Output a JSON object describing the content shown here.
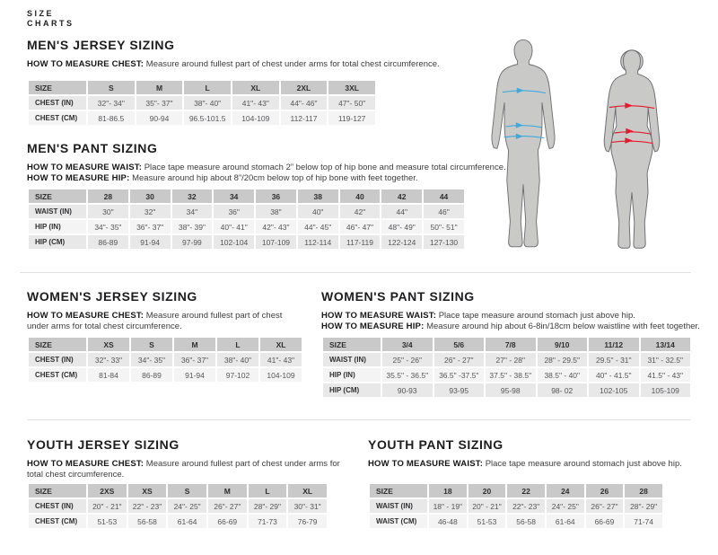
{
  "brand": {
    "line1": "SIZE",
    "line2": "CHARTS"
  },
  "colors": {
    "male_arrow": "#3fa9dc",
    "female_arrow": "#e11b2e",
    "table_header_bg": "#c9c9c9",
    "row_dark": "#e8e8e8",
    "row_light": "#f4f4f4",
    "silhouette_fill": "#c9cac8",
    "divider": "#e2e2e2"
  },
  "sections": {
    "mens_jersey": {
      "title": "MEN'S JERSEY SIZING",
      "instructions": [
        {
          "label": "HOW TO MEASURE CHEST:",
          "text": " Measure around fullest part of chest under arms for total chest circumference."
        }
      ],
      "table": {
        "headers": [
          "SIZE",
          "S",
          "M",
          "L",
          "XL",
          "2XL",
          "3XL"
        ],
        "rows": [
          {
            "label": "CHEST (IN)",
            "values": [
              "32\"- 34\"",
              "35\"- 37\"",
              "38\"- 40\"",
              "41\"- 43\"",
              "44\"- 46\"",
              "47\"- 50\""
            ]
          },
          {
            "label": "CHEST (CM)",
            "values": [
              "81-86.5",
              "90-94",
              "96.5-101.5",
              "104-109",
              "112-117",
              "119-127"
            ]
          }
        ]
      }
    },
    "mens_pant": {
      "title": "MEN'S PANT SIZING",
      "instructions": [
        {
          "label": "HOW TO MEASURE WAIST:",
          "text": " Place tape measure around stomach 2” below top of hip bone and measure total circumference."
        },
        {
          "label": "HOW TO MEASURE HIP:",
          "text": " Measure around hip about 8”/20cm below top of hip bone with feet together."
        }
      ],
      "table": {
        "headers": [
          "SIZE",
          "28",
          "30",
          "32",
          "34",
          "36",
          "38",
          "40",
          "42",
          "44"
        ],
        "rows": [
          {
            "label": "WAIST (IN)",
            "values": [
              "30\"",
              "32\"",
              "34\"",
              "36\"",
              "38\"",
              "40\"",
              "42\"",
              "44\"",
              "46\""
            ]
          },
          {
            "label": "HIP (IN)",
            "values": [
              "34\"- 35\"",
              "36\"- 37\"",
              "38\"- 39\"",
              "40\"- 41\"",
              "42\"- 43\"",
              "44\"- 45\"",
              "46\"- 47\"",
              "48\"- 49\"",
              "50\"- 51\""
            ]
          },
          {
            "label": "HIP (CM)",
            "values": [
              "86-89",
              "91-94",
              "97-99",
              "102-104",
              "107-109",
              "112-114",
              "117-119",
              "122-124",
              "127-130"
            ]
          }
        ]
      }
    },
    "womens_jersey": {
      "title": "WOMEN'S JERSEY SIZING",
      "instructions": [
        {
          "label": "HOW TO MEASURE CHEST:",
          "text": " Measure around fullest part of chest under arms for total chest circumference."
        }
      ],
      "table": {
        "headers": [
          "SIZE",
          "XS",
          "S",
          "M",
          "L",
          "XL"
        ],
        "rows": [
          {
            "label": "CHEST (IN)",
            "values": [
              "32\"- 33\"",
              "34\"- 35\"",
              "36\"- 37\"",
              "38\"- 40\"",
              "41\"- 43\""
            ]
          },
          {
            "label": "CHEST (CM)",
            "values": [
              "81-84",
              "86-89",
              "91-94",
              "97-102",
              "104-109"
            ]
          }
        ]
      }
    },
    "womens_pant": {
      "title": "WOMEN'S PANT SIZING",
      "instructions": [
        {
          "label": "HOW TO MEASURE WAIST:",
          "text": " Place tape measure around stomach just above hip."
        },
        {
          "label": "HOW TO MEASURE HIP:",
          "text": " Measure around hip about 6-8in/18cm below waistline with feet together."
        }
      ],
      "table": {
        "headers": [
          "SIZE",
          "3/4",
          "5/6",
          "7/8",
          "9/10",
          "11/12",
          "13/14"
        ],
        "rows": [
          {
            "label": "WAIST (IN)",
            "values": [
              "25\" - 26\"",
              "26\" - 27\"",
              "27\" - 28\"",
              "28\" - 29.5\"",
              "29.5\" - 31\"",
              "31\" - 32.5\""
            ]
          },
          {
            "label": "HIP (IN)",
            "values": [
              "35.5\" - 36.5\"",
              "36.5\" -37.5\"",
              "37.5\" - 38.5\"",
              "38.5\" - 40\"",
              "40\" - 41.5\"",
              "41.5\" - 43\""
            ]
          },
          {
            "label": "HIP (CM)",
            "values": [
              "90-93",
              "93-95",
              "95-98",
              "98- 02",
              "102-105",
              "105-109"
            ]
          }
        ]
      }
    },
    "youth_jersey": {
      "title": "YOUTH JERSEY SIZING",
      "instructions": [
        {
          "label": "HOW TO MEASURE CHEST:",
          "text": " Measure around fullest part of chest under arms for total chest circumference."
        }
      ],
      "table": {
        "headers": [
          "SIZE",
          "2XS",
          "XS",
          "S",
          "M",
          "L",
          "XL"
        ],
        "rows": [
          {
            "label": "CHEST (IN)",
            "values": [
              "20\" - 21\"",
              "22\" - 23\"",
              "24\"- 25\"",
              "26\"- 27\"",
              "28\"- 29\"",
              "30\"- 31\""
            ]
          },
          {
            "label": "CHEST (CM)",
            "values": [
              "51-53",
              "56-58",
              "61-64",
              "66-69",
              "71-73",
              "76-79"
            ]
          }
        ]
      }
    },
    "youth_pant": {
      "title": "YOUTH PANT SIZING",
      "instructions": [
        {
          "label": "HOW TO MEASURE WAIST:",
          "text": " Place tape measure around stomach just above hip."
        }
      ],
      "table": {
        "headers": [
          "SIZE",
          "18",
          "20",
          "22",
          "24",
          "26",
          "28"
        ],
        "rows": [
          {
            "label": "WAIST (IN)",
            "values": [
              "18\" - 19\"",
              "20\" - 21\"",
              "22\"- 23\"",
              "24\"- 25\"",
              "26\"- 27\"",
              "28\"- 29\""
            ]
          },
          {
            "label": "WAIST (CM)",
            "values": [
              "46-48",
              "51-53",
              "56-58",
              "61-64",
              "66-69",
              "71-74"
            ]
          }
        ]
      }
    }
  },
  "figures": {
    "male": {
      "name": "male silhouette",
      "measurement_lines": [
        "chest",
        "waist",
        "hip"
      ],
      "arrow_color": "#3fa9dc"
    },
    "female": {
      "name": "female silhouette",
      "measurement_lines": [
        "chest",
        "waist",
        "hip"
      ],
      "arrow_color": "#e11b2e"
    }
  }
}
